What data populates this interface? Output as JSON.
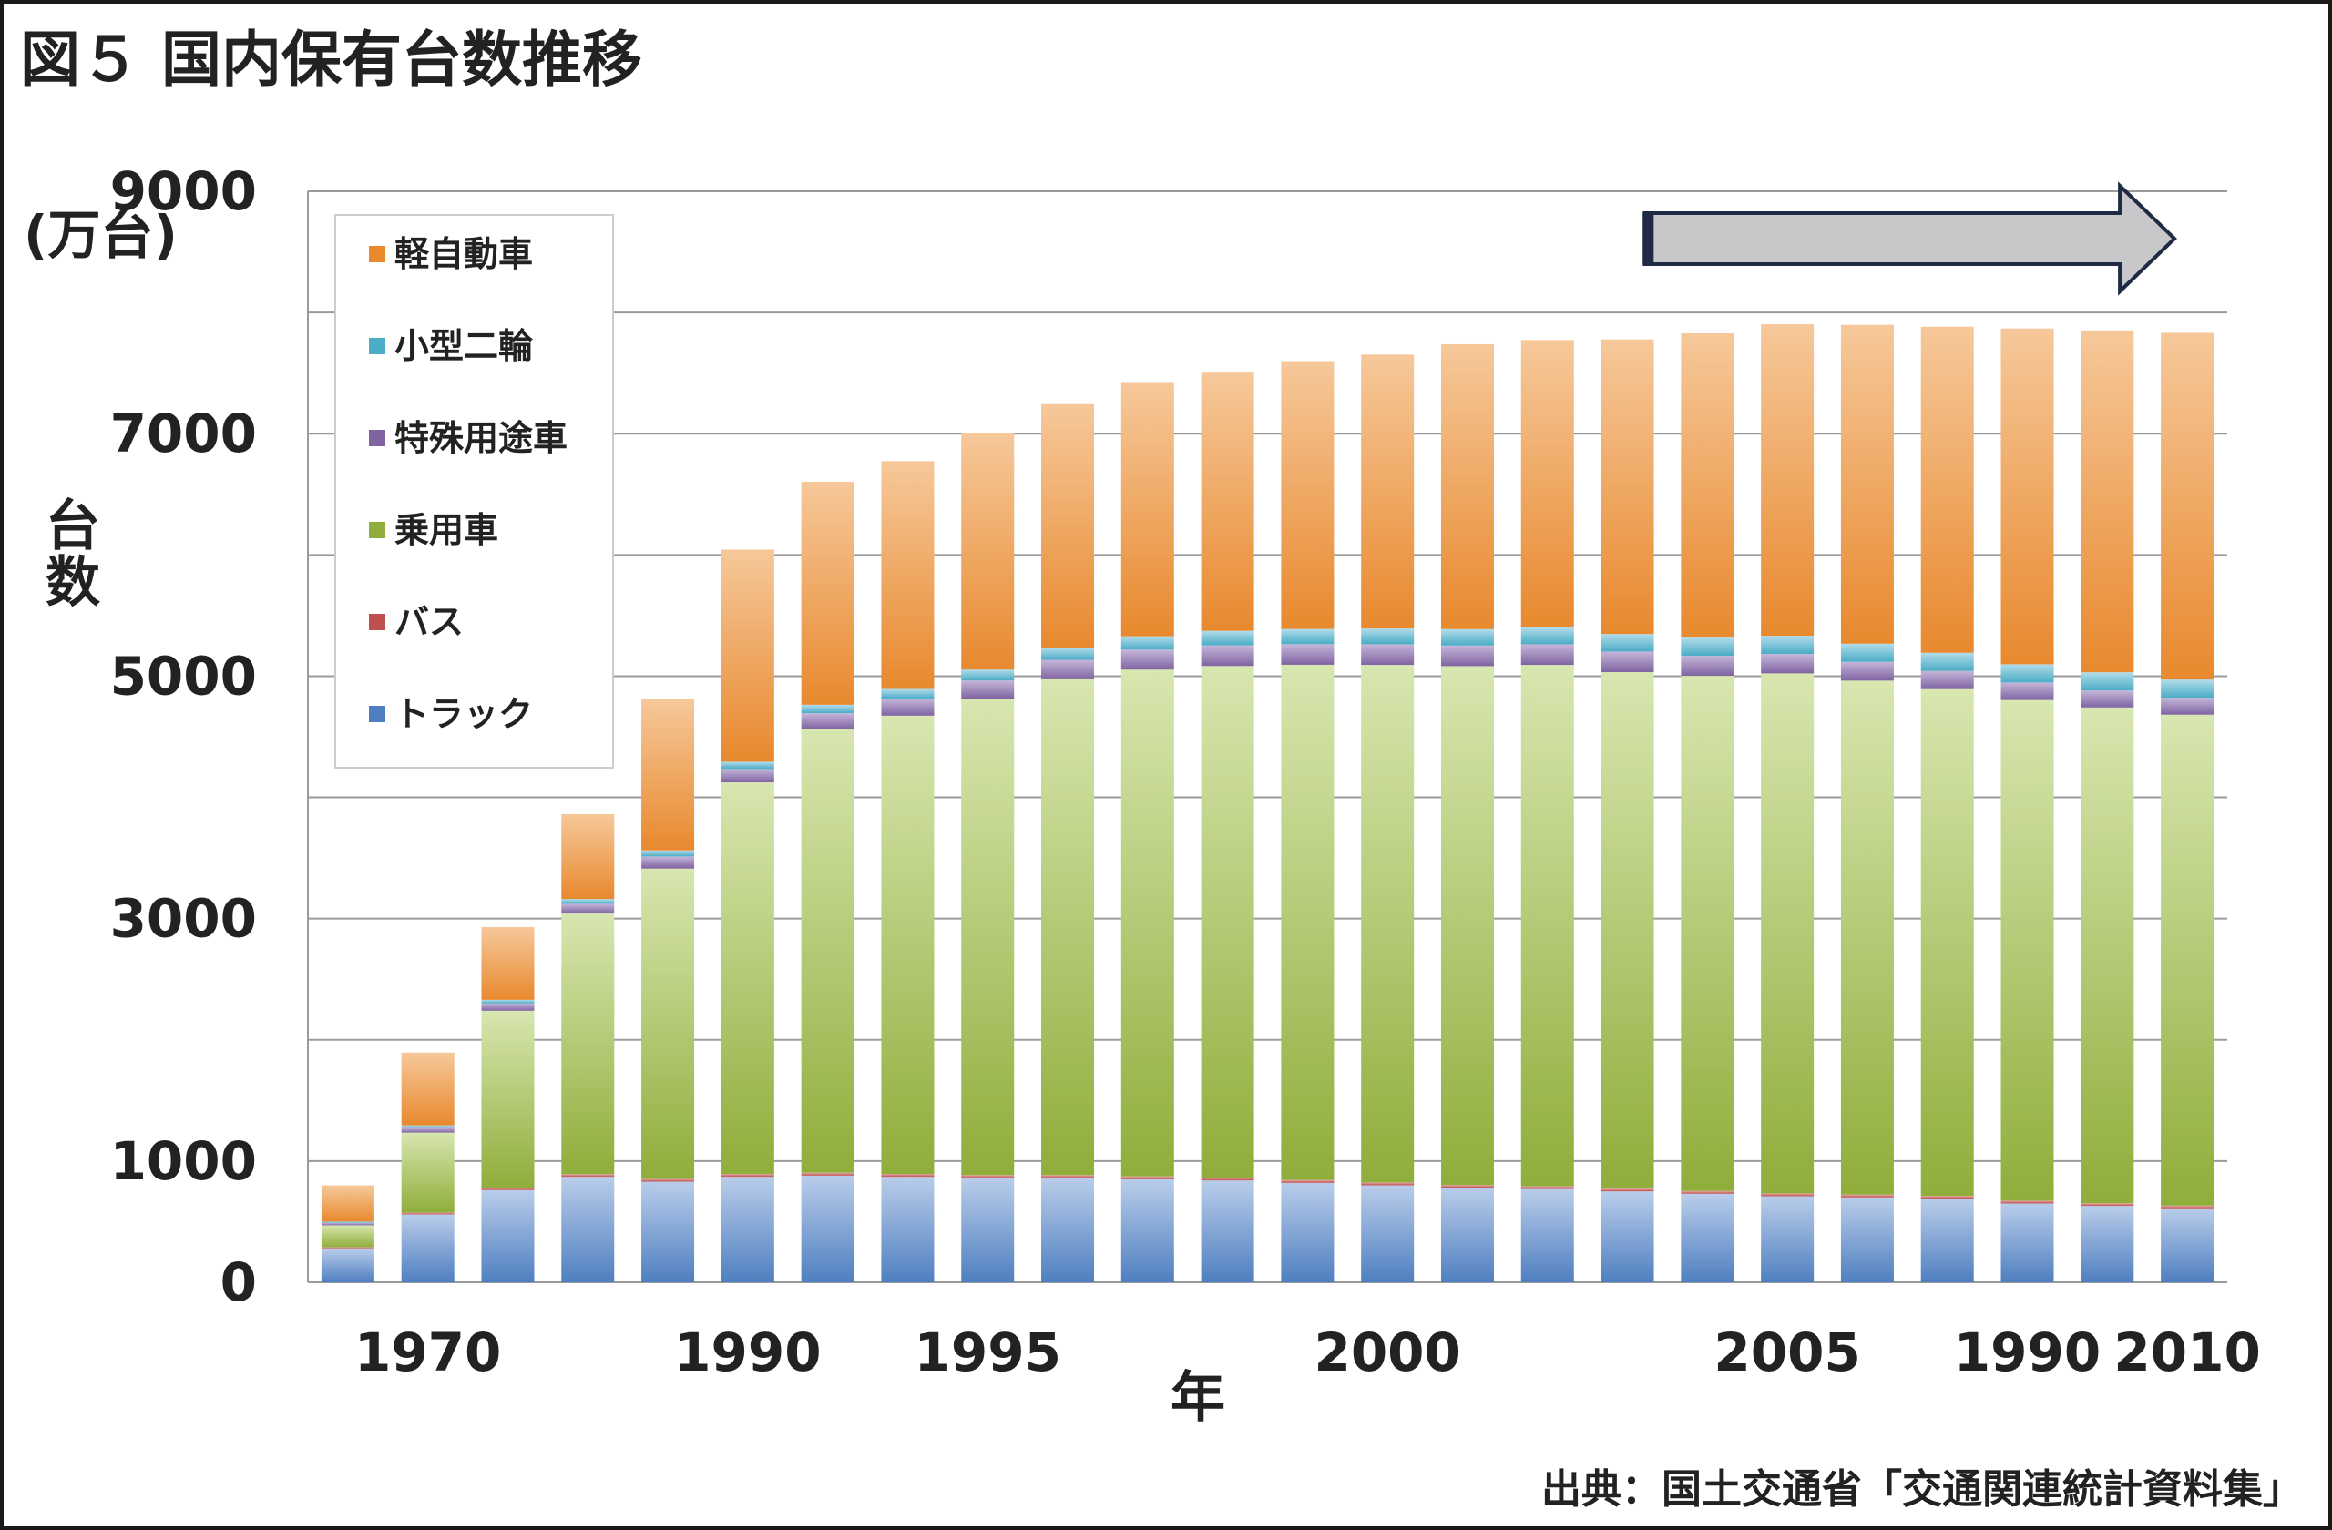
{
  "title": "図５ 国内保有台数推移",
  "source": "出典：国土交通省「交通関連統計資料集」",
  "chart_data": {
    "type": "bar",
    "stacked": true,
    "y_unit_label": "(万台)",
    "ylabel": "台数",
    "xlabel": "年",
    "ylim": [
      0,
      9000
    ],
    "yticks": [
      0,
      1000,
      3000,
      5000,
      7000,
      9000
    ],
    "gridlines": [
      0,
      1000,
      2000,
      3000,
      4000,
      5000,
      6000,
      7000,
      8000,
      9000
    ],
    "categories_count": 24,
    "x_tick_labels": [
      {
        "label": "1970",
        "bar_index": 1
      },
      {
        "label": "1990",
        "bar_index": 5
      },
      {
        "label": "1995",
        "bar_index": 8
      },
      {
        "label": "2000",
        "bar_index": 13
      },
      {
        "label": "2005",
        "bar_index": 18
      },
      {
        "label": "1990",
        "bar_index": 21
      },
      {
        "label": "2010",
        "bar_index": 23
      }
    ],
    "legend": [
      "軽自動車",
      "小型二輪",
      "特殊用途車",
      "乗用車",
      "バス",
      "トラック"
    ],
    "series": [
      {
        "name": "トラック",
        "color": "#4f7fc0",
        "light": "#b9cdea",
        "values": [
          280,
          560,
          760,
          870,
          830,
          870,
          880,
          870,
          860,
          860,
          850,
          840,
          820,
          800,
          780,
          770,
          750,
          730,
          710,
          700,
          690,
          650,
          630,
          610
        ]
      },
      {
        "name": "バス",
        "color": "#c0504d",
        "light": "#e6a9a7",
        "values": [
          10,
          15,
          20,
          22,
          23,
          24,
          24,
          24,
          24,
          24,
          24,
          24,
          24,
          23,
          23,
          23,
          23,
          23,
          23,
          23,
          23,
          23,
          22,
          22
        ]
      },
      {
        "name": "乗用車",
        "color": "#8fae3b",
        "light": "#d8e6b0",
        "values": [
          180,
          660,
          1460,
          2150,
          2560,
          3230,
          3660,
          3780,
          3930,
          4090,
          4180,
          4220,
          4250,
          4270,
          4280,
          4300,
          4260,
          4250,
          4290,
          4240,
          4180,
          4130,
          4090,
          4050
        ]
      },
      {
        "name": "特殊用途車",
        "color": "#8064a2",
        "light": "#c5b6d9",
        "values": [
          20,
          40,
          60,
          80,
          100,
          110,
          130,
          140,
          150,
          160,
          165,
          170,
          170,
          170,
          170,
          170,
          170,
          165,
          160,
          155,
          150,
          145,
          140,
          140
        ]
      },
      {
        "name": "小型二輪",
        "color": "#4bacc6",
        "light": "#b2dcea",
        "values": [
          10,
          20,
          30,
          40,
          50,
          60,
          70,
          80,
          90,
          100,
          110,
          120,
          125,
          130,
          135,
          140,
          145,
          150,
          150,
          150,
          150,
          150,
          150,
          150
        ]
      },
      {
        "name": "軽自動車",
        "color": "#e8892e",
        "light": "#f6c89a",
        "values": [
          300,
          600,
          600,
          700,
          1250,
          1750,
          1840,
          1880,
          1950,
          2010,
          2090,
          2130,
          2210,
          2260,
          2350,
          2370,
          2430,
          2510,
          2570,
          2630,
          2690,
          2770,
          2820,
          2860
        ]
      }
    ],
    "arrow_annotation": {
      "from_bar_index": 17,
      "to_bar_index": 23
    }
  }
}
